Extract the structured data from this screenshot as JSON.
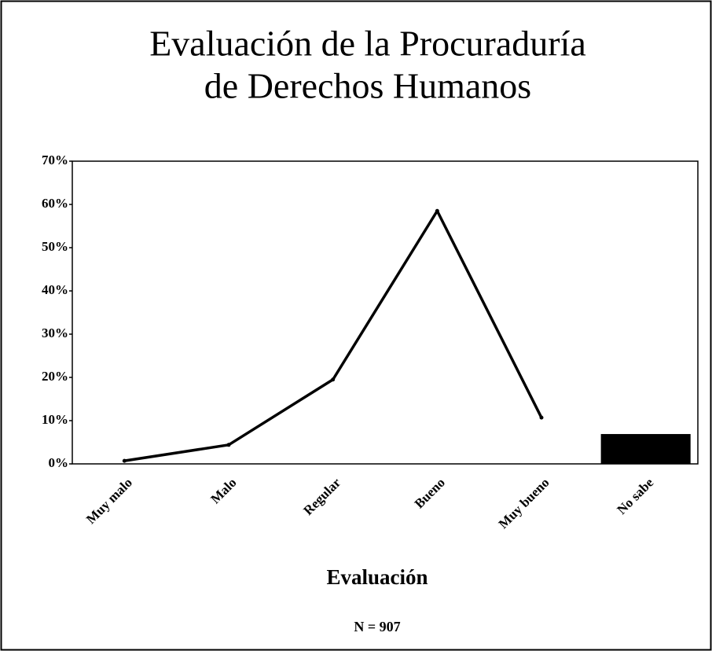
{
  "chart_data": {
    "type": "combo",
    "title": [
      "Evaluación de la Procuraduría",
      "de Derechos Humanos"
    ],
    "xlabel": "Evaluación",
    "note": "N = 907",
    "categories": [
      "Muy malo",
      "Malo",
      "Regular",
      "Bueno",
      "Muy bueno",
      "No sabe"
    ],
    "series": [
      {
        "type": "line",
        "color": "#000000",
        "values": [
          0.7,
          4.4,
          19.5,
          58.5,
          10.7,
          null
        ]
      },
      {
        "type": "bar",
        "color": "#000000",
        "values": [
          null,
          null,
          null,
          null,
          null,
          6.9
        ]
      }
    ],
    "ylim": [
      0,
      70
    ],
    "yticks": [
      {
        "value": 0,
        "label": "0%"
      },
      {
        "value": 10,
        "label": "10%"
      },
      {
        "value": 20,
        "label": "20%"
      },
      {
        "value": 30,
        "label": "30%"
      },
      {
        "value": 40,
        "label": "40%"
      },
      {
        "value": 50,
        "label": "50%"
      },
      {
        "value": 60,
        "label": "60%"
      },
      {
        "value": 70,
        "label": "70%"
      }
    ],
    "grid": false
  }
}
